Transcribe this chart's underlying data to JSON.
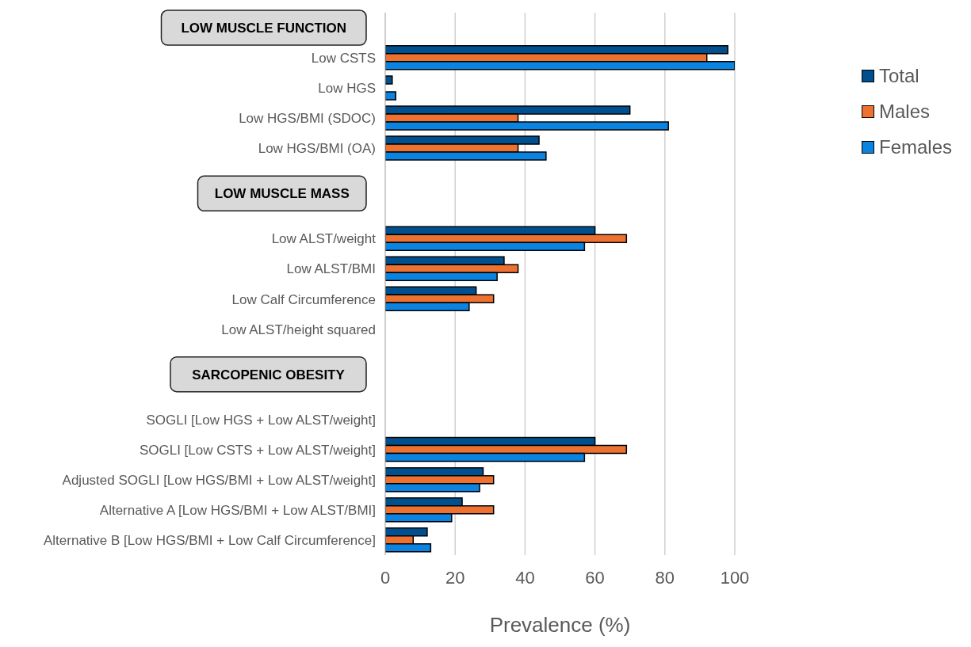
{
  "chart_data": {
    "type": "bar",
    "orientation": "horizontal",
    "xlabel": "Prevalence (%)",
    "categories": [
      null,
      "Low CSTS",
      "Low HGS",
      "Low HGS/BMI (SDOC)",
      "Low HGS/BMI (OA)",
      null,
      null,
      "Low ALST/weight",
      "Low ALST/BMI",
      "Low Calf Circumference",
      "Low ALST/height squared",
      null,
      null,
      "SOGLI [Low HGS + Low ALST/weight]",
      "SOGLI [Low CSTS + Low ALST/weight]",
      "Adjusted SOGLI [Low HGS/BMI + Low ALST/weight]",
      "Alternative A [Low HGS/BMI + Low ALST/BMI]",
      "Alternative B [Low HGS/BMI + Low Calf Circumference]"
    ],
    "series": [
      {
        "name": "Total",
        "color": "#00508f",
        "values": [
          null,
          98,
          2,
          70,
          44,
          null,
          null,
          60,
          34,
          26,
          0,
          null,
          null,
          0,
          60,
          28,
          22,
          12
        ]
      },
      {
        "name": "Males",
        "color": "#ed7130",
        "values": [
          null,
          92,
          0,
          38,
          38,
          null,
          null,
          69,
          38,
          31,
          0,
          null,
          null,
          0,
          69,
          31,
          31,
          8
        ]
      },
      {
        "name": "Females",
        "color": "#0a84e0",
        "values": [
          null,
          100,
          3,
          81,
          46,
          null,
          null,
          57,
          32,
          24,
          0,
          null,
          null,
          0,
          57,
          27,
          19,
          13
        ]
      }
    ],
    "annotations": [
      "LOW MUSCLE FUNCTION",
      "LOW MUSCLE MASS",
      "SARCOPENIC OBESITY"
    ],
    "xlim": [
      0,
      100
    ],
    "xticks": [
      0,
      20,
      40,
      60,
      80,
      100
    ],
    "grid": "x",
    "legend": "top right"
  }
}
